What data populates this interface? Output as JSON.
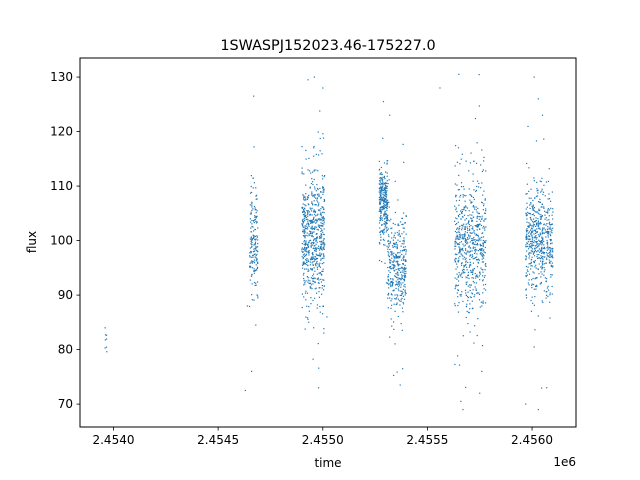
{
  "chart_data": {
    "type": "scatter",
    "title": "1SWASPJ152023.46-175227.0",
    "xlabel": "time",
    "ylabel": "flux",
    "x_offset_label": "1e6",
    "xlim": [
      2.45384,
      2.45621
    ],
    "ylim": [
      65.8,
      133.5
    ],
    "grid": false,
    "legend": "none",
    "marker_color": "#1f77b4",
    "x_ticks": [
      {
        "value": 2.454,
        "label": "2.4540"
      },
      {
        "value": 2.4545,
        "label": "2.4545"
      },
      {
        "value": 2.455,
        "label": "2.4550"
      },
      {
        "value": 2.4555,
        "label": "2.4555"
      },
      {
        "value": 2.456,
        "label": "2.4560"
      }
    ],
    "y_ticks": [
      {
        "value": 70,
        "label": "70"
      },
      {
        "value": 80,
        "label": "80"
      },
      {
        "value": 90,
        "label": "90"
      },
      {
        "value": 100,
        "label": "100"
      },
      {
        "value": 110,
        "label": "110"
      },
      {
        "value": 120,
        "label": "120"
      },
      {
        "value": 130,
        "label": "130"
      }
    ],
    "clusters": [
      {
        "x_start": 2.45396,
        "x_end": 2.45397,
        "y_center": 82.0,
        "y_spread": 1.5,
        "n_points": 6
      },
      {
        "x_start": 2.45465,
        "x_end": 2.45469,
        "y_center": 100.0,
        "y_spread": 4.5,
        "n_points": 170
      },
      {
        "x_start": 2.4549,
        "x_end": 2.45501,
        "y_center": 100.5,
        "y_spread": 6.0,
        "n_points": 650
      },
      {
        "x_start": 2.45527,
        "x_end": 2.45531,
        "y_center": 107.0,
        "y_spread": 3.2,
        "n_points": 280
      },
      {
        "x_start": 2.45531,
        "x_end": 2.4554,
        "y_center": 95.5,
        "y_spread": 4.6,
        "n_points": 360
      },
      {
        "x_start": 2.45563,
        "x_end": 2.45578,
        "y_center": 99.0,
        "y_spread": 6.2,
        "n_points": 620
      },
      {
        "x_start": 2.45597,
        "x_end": 2.4561,
        "y_center": 100.0,
        "y_spread": 4.6,
        "n_points": 560
      }
    ],
    "outlier_points": [
      [
        2.45396,
        84.0
      ],
      [
        2.45396,
        80.3
      ],
      [
        2.45463,
        72.5
      ],
      [
        2.45464,
        88.0
      ],
      [
        2.45467,
        126.5
      ],
      [
        2.45468,
        84.5
      ],
      [
        2.45469,
        89.5
      ],
      [
        2.45466,
        76.0
      ],
      [
        2.45493,
        129.5
      ],
      [
        2.45496,
        130.0
      ],
      [
        2.45498,
        73.0
      ],
      [
        2.455,
        128.0
      ],
      [
        2.45502,
        86.0
      ],
      [
        2.45529,
        125.5
      ],
      [
        2.45532,
        123.0
      ],
      [
        2.45537,
        73.5
      ],
      [
        2.45556,
        128.0
      ],
      [
        2.45565,
        130.5
      ],
      [
        2.45566,
        70.5
      ],
      [
        2.45567,
        69.0
      ],
      [
        2.45575,
        72.0
      ],
      [
        2.45576,
        76.0
      ],
      [
        2.45601,
        130.0
      ],
      [
        2.45603,
        126.0
      ],
      [
        2.45605,
        123.0
      ],
      [
        2.45597,
        70.0
      ],
      [
        2.45603,
        69.0
      ],
      [
        2.45607,
        73.0
      ]
    ]
  }
}
